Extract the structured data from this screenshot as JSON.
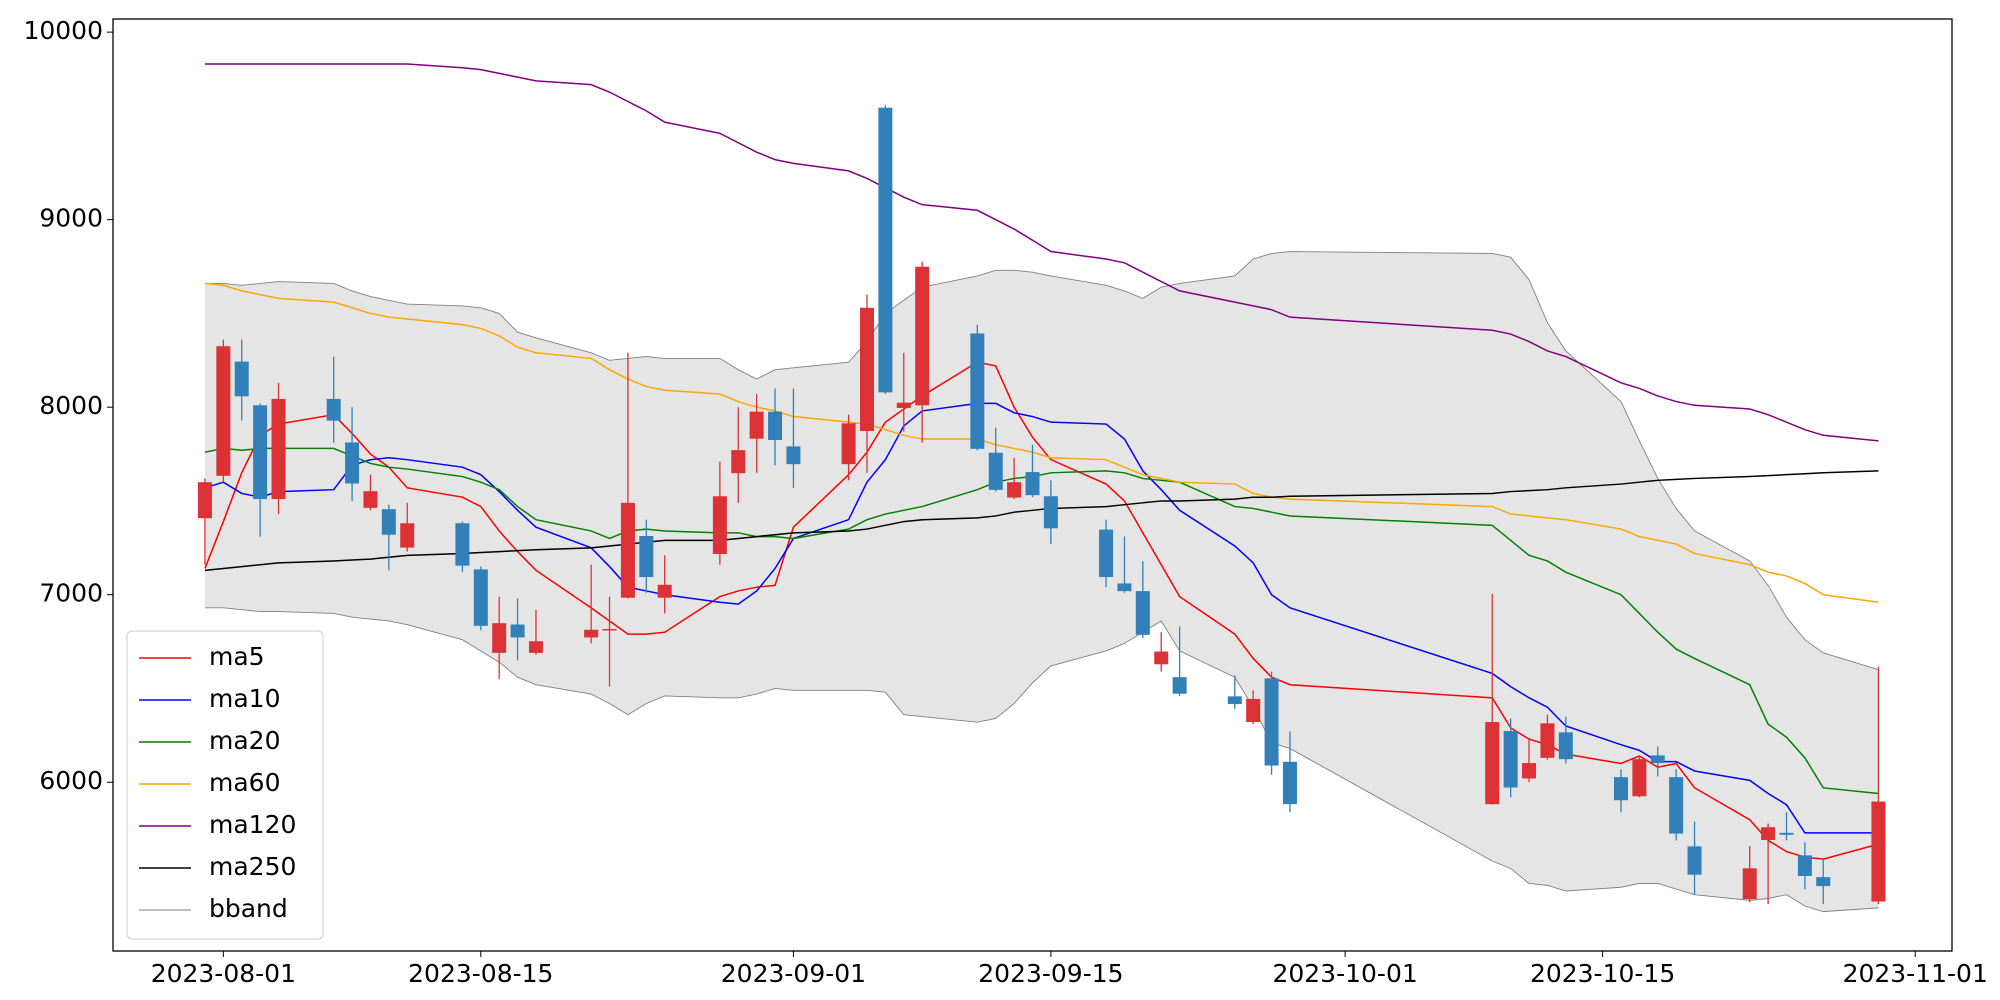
{
  "chart_data": {
    "type": "candlestick",
    "x": [
      "2023-07-31",
      "2023-08-01",
      "2023-08-02",
      "2023-08-03",
      "2023-08-04",
      "2023-08-07",
      "2023-08-08",
      "2023-08-09",
      "2023-08-10",
      "2023-08-11",
      "2023-08-14",
      "2023-08-15",
      "2023-08-16",
      "2023-08-17",
      "2023-08-18",
      "2023-08-21",
      "2023-08-22",
      "2023-08-23",
      "2023-08-24",
      "2023-08-25",
      "2023-08-28",
      "2023-08-29",
      "2023-08-30",
      "2023-08-31",
      "2023-09-01",
      "2023-09-04",
      "2023-09-05",
      "2023-09-06",
      "2023-09-07",
      "2023-09-08",
      "2023-09-11",
      "2023-09-12",
      "2023-09-13",
      "2023-09-14",
      "2023-09-15",
      "2023-09-18",
      "2023-09-19",
      "2023-09-20",
      "2023-09-21",
      "2023-09-22",
      "2023-09-25",
      "2023-09-26",
      "2023-09-27",
      "2023-09-28",
      "2023-10-09",
      "2023-10-10",
      "2023-10-11",
      "2023-10-12",
      "2023-10-13",
      "2023-10-16",
      "2023-10-17",
      "2023-10-18",
      "2023-10-19",
      "2023-10-20",
      "2023-10-23",
      "2023-10-24",
      "2023-10-25",
      "2023-10-26",
      "2023-10-27",
      "2023-10-30"
    ],
    "open": [
      7408,
      7634,
      8243,
      8010,
      7510,
      8044,
      7812,
      7463,
      7456,
      7251,
      7381,
      7135,
      6690,
      6841,
      6690,
      6772,
      6810,
      6984,
      7313,
      6984,
      7217,
      7648,
      7832,
      7976,
      7791,
      7696,
      7873,
      9597,
      7996,
      8010,
      8393,
      7757,
      7518,
      7654,
      7525,
      7347,
      7060,
      7019,
      6629,
      6560,
      6458,
      6321,
      6554,
      6109,
      5883,
      6273,
      6020,
      6130,
      6266,
      6027,
      5925,
      6143,
      6027,
      5658,
      5377,
      5692,
      5730,
      5610,
      5494,
      5364
    ],
    "high": [
      7620,
      8360,
      8360,
      8020,
      8130,
      8270,
      8000,
      7640,
      7480,
      7490,
      7390,
      7150,
      6990,
      6980,
      6920,
      7160,
      6990,
      8290,
      7400,
      7210,
      7710,
      8000,
      8070,
      8100,
      8100,
      7960,
      8600,
      9610,
      8290,
      8776,
      8440,
      7890,
      7730,
      7800,
      7610,
      7400,
      7310,
      7180,
      6800,
      6830,
      6570,
      6490,
      6590,
      6270,
      7005,
      6340,
      6230,
      6360,
      6350,
      6070,
      6140,
      6190,
      6070,
      5790,
      5660,
      5780,
      5840,
      5680,
      5590,
      6615
    ],
    "low": [
      7160,
      7600,
      7930,
      7310,
      7430,
      7810,
      7500,
      7450,
      7130,
      7230,
      7120,
      6810,
      6550,
      6650,
      6680,
      6740,
      6510,
      6980,
      7010,
      6900,
      7160,
      7490,
      7650,
      7690,
      7570,
      7610,
      7650,
      8070,
      7870,
      7810,
      7770,
      7550,
      7510,
      7520,
      7270,
      7040,
      7010,
      6770,
      6590,
      6460,
      6390,
      6310,
      6040,
      5840,
      5880,
      5920,
      6000,
      6120,
      6100,
      5840,
      5920,
      6030,
      5690,
      5400,
      5360,
      5350,
      5690,
      5430,
      5350,
      5350
    ],
    "close": [
      7600,
      8325,
      8058,
      7510,
      8044,
      7928,
      7593,
      7552,
      7320,
      7381,
      7155,
      6834,
      6848,
      6772,
      6752,
      6813,
      6817,
      7490,
      7094,
      7053,
      7525,
      7771,
      7976,
      7825,
      7696,
      7914,
      8530,
      8079,
      8024,
      8749,
      7778,
      7559,
      7600,
      7531,
      7354,
      7094,
      7019,
      6786,
      6697,
      6472,
      6417,
      6444,
      6089,
      5883,
      6321,
      5972,
      6102,
      6314,
      6123,
      5904,
      6123,
      6102,
      5726,
      5507,
      5541,
      5760,
      5720,
      5500,
      5446,
      5897
    ],
    "up_color": "#dc3236",
    "down_color": "#3180ba",
    "series": [
      {
        "name": "ma5",
        "color": "#ff0000",
        "values": [
          7140,
          7390,
          7650,
          7850,
          7910,
          7960,
          7860,
          7750,
          7680,
          7570,
          7520,
          7470,
          7340,
          7230,
          7130,
          6930,
          6860,
          6790,
          6790,
          6800,
          6990,
          7020,
          7040,
          7050,
          7360,
          7640,
          7760,
          7920,
          7990,
          8060,
          8240,
          8220,
          8000,
          7840,
          7720,
          7590,
          7500,
          7330,
          7160,
          6990,
          6790,
          6660,
          6560,
          6520,
          6450,
          6290,
          6230,
          6200,
          6150,
          6100,
          6140,
          6080,
          6100,
          5970,
          5800,
          5690,
          5630,
          5600,
          5590,
          5670
        ]
      },
      {
        "name": "ma10",
        "color": "#0000ff",
        "values": [
          7570,
          7600,
          7540,
          7520,
          7550,
          7560,
          7690,
          7720,
          7730,
          7720,
          7680,
          7640,
          7550,
          7450,
          7360,
          7250,
          7150,
          7040,
          7020,
          7000,
          6960,
          6950,
          7020,
          7140,
          7300,
          7400,
          7600,
          7720,
          7900,
          7980,
          8020,
          8020,
          7970,
          7950,
          7920,
          7910,
          7830,
          7660,
          7560,
          7450,
          7260,
          7170,
          7000,
          6930,
          6580,
          6510,
          6450,
          6400,
          6300,
          6200,
          6170,
          6110,
          6110,
          6060,
          6010,
          5940,
          5880,
          5730,
          5730,
          5730
        ]
      },
      {
        "name": "ma20",
        "color": "#008000",
        "values": [
          7760,
          7780,
          7770,
          7780,
          7780,
          7780,
          7740,
          7700,
          7680,
          7670,
          7630,
          7600,
          7560,
          7470,
          7400,
          7340,
          7300,
          7340,
          7350,
          7340,
          7330,
          7330,
          7310,
          7310,
          7300,
          7350,
          7400,
          7430,
          7450,
          7470,
          7560,
          7600,
          7620,
          7630,
          7650,
          7660,
          7650,
          7620,
          7610,
          7600,
          7470,
          7460,
          7440,
          7420,
          7370,
          7290,
          7210,
          7180,
          7120,
          7000,
          6900,
          6800,
          6710,
          6660,
          6520,
          6310,
          6240,
          6130,
          5970,
          5940
        ]
      },
      {
        "name": "ma60",
        "color": "#ffa500",
        "values": [
          8660,
          8650,
          8620,
          8600,
          8580,
          8560,
          8530,
          8500,
          8480,
          8470,
          8440,
          8420,
          8380,
          8320,
          8290,
          8260,
          8200,
          8150,
          8110,
          8090,
          8070,
          8030,
          8000,
          7980,
          7950,
          7920,
          7910,
          7880,
          7850,
          7830,
          7830,
          7800,
          7780,
          7760,
          7730,
          7720,
          7680,
          7640,
          7620,
          7600,
          7590,
          7540,
          7520,
          7510,
          7470,
          7430,
          7420,
          7410,
          7400,
          7350,
          7310,
          7290,
          7270,
          7220,
          7160,
          7120,
          7100,
          7060,
          7000,
          6960
        ]
      },
      {
        "name": "ma120",
        "color": "#800080",
        "values": [
          9830,
          9830,
          9830,
          9830,
          9830,
          9830,
          9830,
          9830,
          9830,
          9830,
          9810,
          9800,
          9780,
          9760,
          9740,
          9720,
          9680,
          9630,
          9580,
          9520,
          9460,
          9410,
          9360,
          9320,
          9300,
          9260,
          9220,
          9170,
          9120,
          9080,
          9050,
          9000,
          8950,
          8890,
          8830,
          8790,
          8770,
          8720,
          8670,
          8620,
          8560,
          8540,
          8520,
          8480,
          8410,
          8390,
          8350,
          8300,
          8270,
          8130,
          8100,
          8060,
          8030,
          8010,
          7990,
          7960,
          7920,
          7880,
          7850,
          7820
        ]
      },
      {
        "name": "ma250",
        "color": "#000000",
        "values": [
          7130,
          7140,
          7150,
          7160,
          7170,
          7180,
          7185,
          7190,
          7200,
          7210,
          7220,
          7225,
          7230,
          7235,
          7240,
          7250,
          7260,
          7270,
          7280,
          7290,
          7290,
          7300,
          7310,
          7320,
          7330,
          7340,
          7350,
          7370,
          7390,
          7400,
          7410,
          7420,
          7440,
          7450,
          7460,
          7470,
          7480,
          7490,
          7500,
          7500,
          7510,
          7520,
          7520,
          7525,
          7540,
          7550,
          7555,
          7560,
          7570,
          7590,
          7600,
          7610,
          7615,
          7620,
          7630,
          7635,
          7640,
          7645,
          7650,
          7660
        ]
      }
    ],
    "band": {
      "name": "bband",
      "color": "#808080",
      "fill": "#e5e5e5",
      "upper": [
        8660,
        8660,
        8650,
        8660,
        8670,
        8660,
        8620,
        8590,
        8570,
        8550,
        8540,
        8530,
        8500,
        8400,
        8370,
        8290,
        8250,
        8260,
        8270,
        8260,
        8260,
        8200,
        8150,
        8200,
        8210,
        8240,
        8350,
        8500,
        8570,
        8640,
        8700,
        8730,
        8730,
        8720,
        8700,
        8650,
        8620,
        8580,
        8640,
        8660,
        8700,
        8790,
        8820,
        8830,
        8820,
        8800,
        8680,
        8450,
        8300,
        8030,
        7820,
        7620,
        7460,
        7340,
        7180,
        7050,
        6880,
        6760,
        6690,
        6600
      ],
      "lower": [
        6930,
        6930,
        6920,
        6910,
        6910,
        6900,
        6880,
        6870,
        6860,
        6840,
        6760,
        6700,
        6640,
        6560,
        6520,
        6470,
        6420,
        6360,
        6420,
        6460,
        6450,
        6450,
        6470,
        6500,
        6490,
        6490,
        6490,
        6480,
        6360,
        6350,
        6320,
        6340,
        6420,
        6530,
        6620,
        6700,
        6740,
        6800,
        6860,
        6700,
        6560,
        6400,
        6210,
        6180,
        5580,
        5540,
        5460,
        5450,
        5420,
        5440,
        5460,
        5460,
        5430,
        5400,
        5370,
        5380,
        5400,
        5340,
        5310,
        5330
      ]
    },
    "xlim": [
      "2023-07-26",
      "2023-11-03"
    ],
    "xticks": [
      "2023-08-01",
      "2023-08-15",
      "2023-09-01",
      "2023-09-15",
      "2023-10-01",
      "2023-10-15",
      "2023-11-01"
    ],
    "ylim": [
      5100,
      10070
    ],
    "yticks": [
      6000,
      7000,
      8000,
      9000,
      10000
    ],
    "legend": "lower left"
  }
}
